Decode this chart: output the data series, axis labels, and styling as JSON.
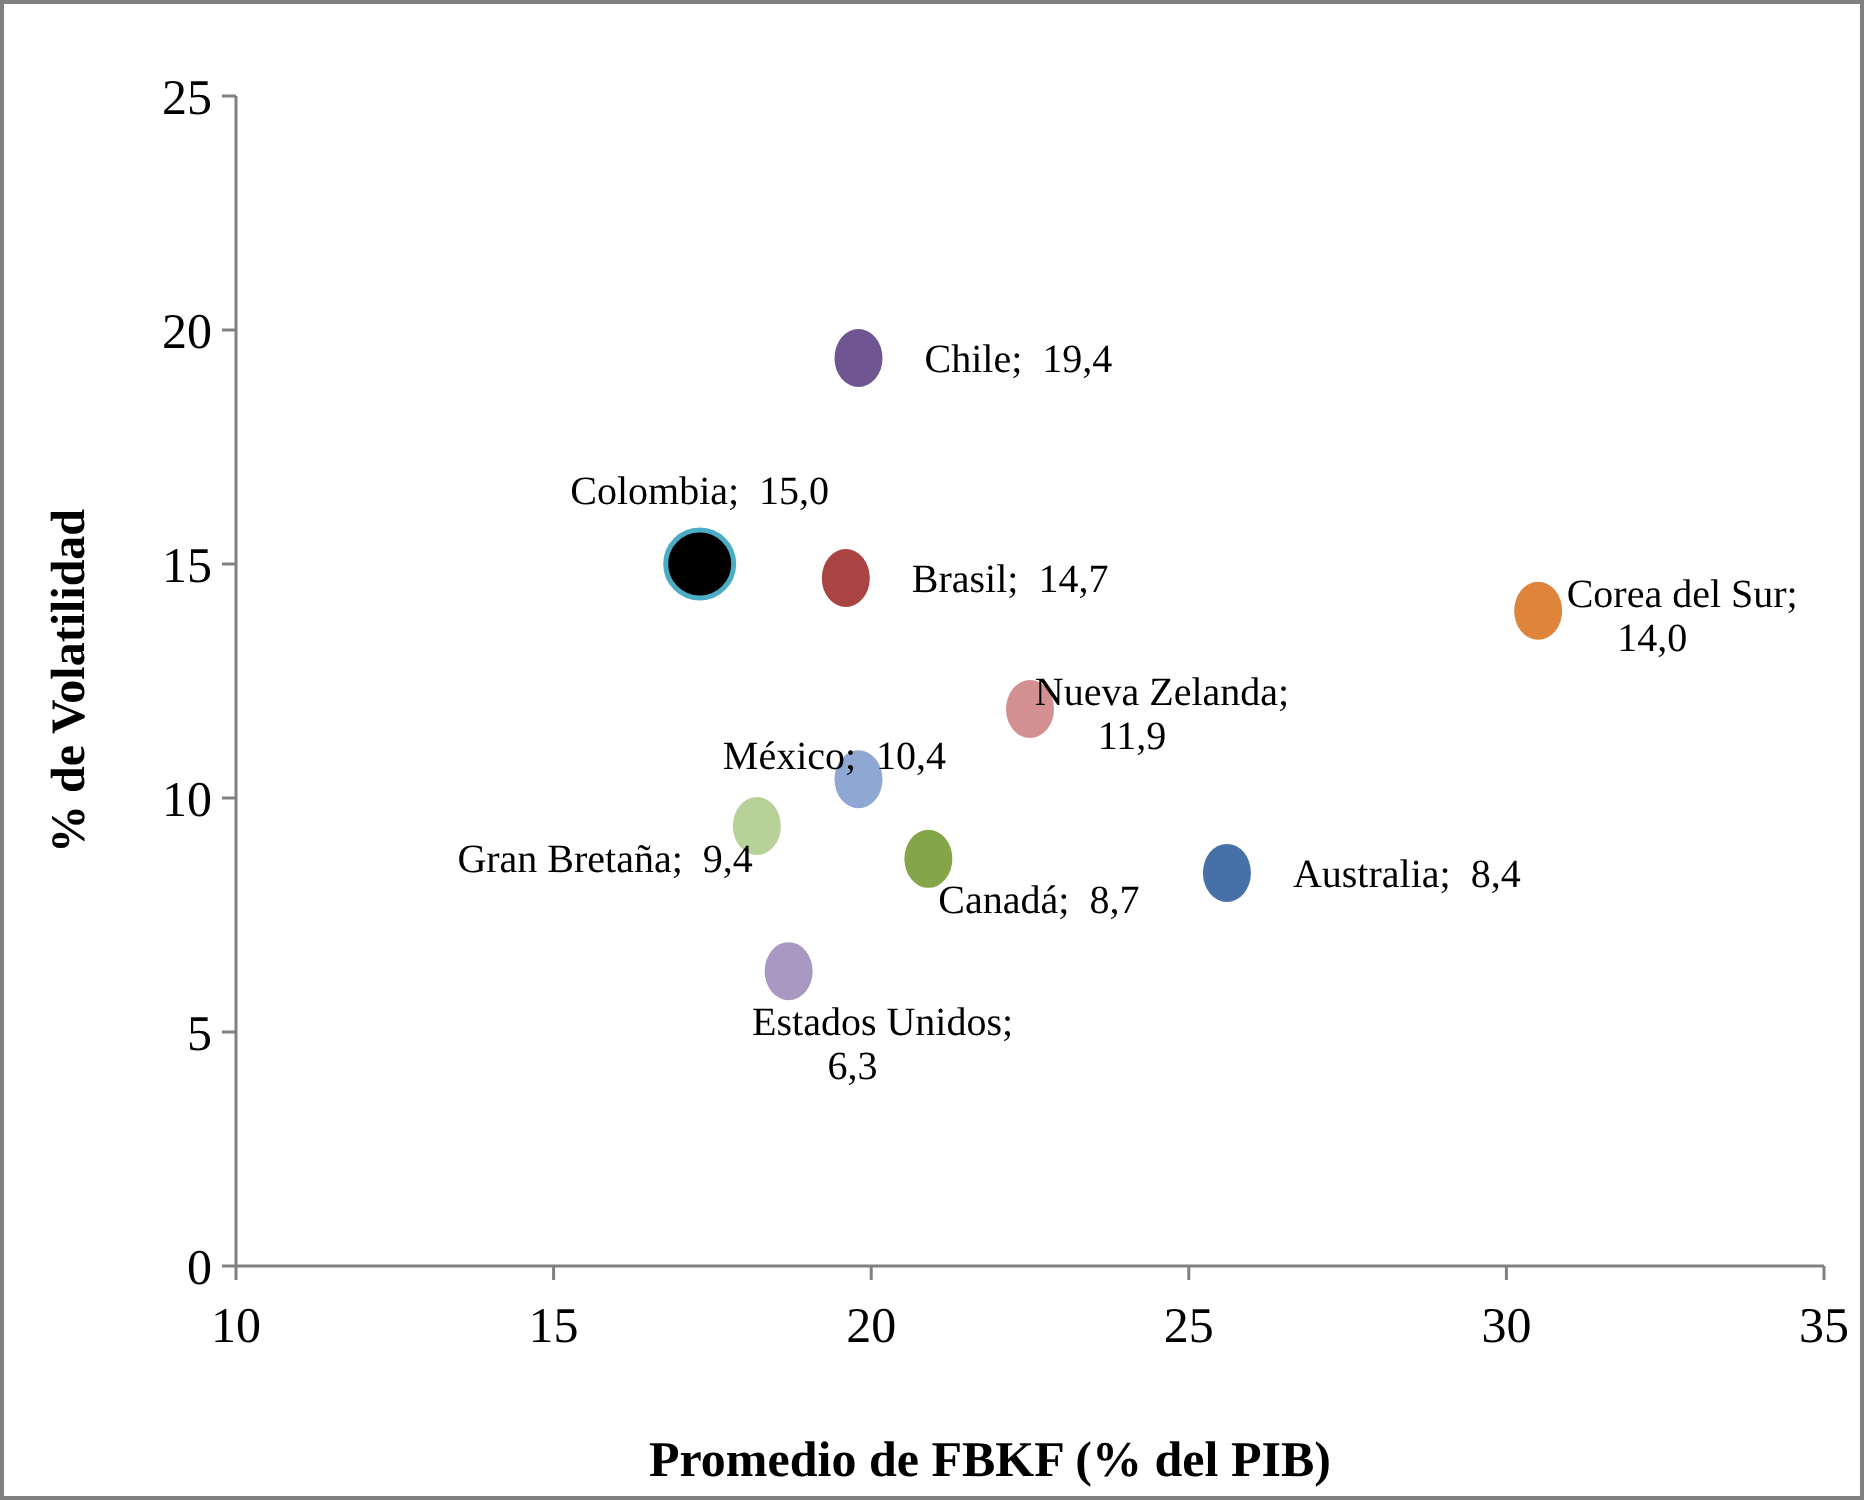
{
  "chart_data": {
    "type": "scatter",
    "xlabel": "Promedio de FBKF (% del PIB)",
    "ylabel": "% de Volatilidad",
    "xlim": [
      10,
      35
    ],
    "xticks": [
      10,
      15,
      20,
      25,
      30,
      35
    ],
    "ylim": [
      0,
      25
    ],
    "yticks": [
      0,
      5,
      10,
      15,
      20,
      25
    ],
    "grid": false,
    "legend": false,
    "marker": "circle",
    "series": [
      {
        "name": "Chile;",
        "color": "#6f5592",
        "x": [
          19.8
        ],
        "values": [
          19.4
        ],
        "value_labels": [
          "19,4"
        ]
      },
      {
        "name": "Colombia;",
        "color": "#000000",
        "x": [
          17.3
        ],
        "values": [
          15.0
        ],
        "value_labels": [
          "15,0"
        ]
      },
      {
        "name": "Brasil;",
        "color": "#a94442",
        "x": [
          19.6
        ],
        "values": [
          14.7
        ],
        "value_labels": [
          "14,7"
        ]
      },
      {
        "name": "Corea del Sur;",
        "color": "#de843b",
        "x": [
          30.5
        ],
        "values": [
          14.0
        ],
        "value_labels": [
          "14,0"
        ]
      },
      {
        "name": "Nueva Zelanda;",
        "color": "#d49090",
        "x": [
          22.5
        ],
        "values": [
          11.9
        ],
        "value_labels": [
          "11,9"
        ]
      },
      {
        "name": "México;",
        "color": "#8ea7d3",
        "x": [
          19.8
        ],
        "values": [
          10.4
        ],
        "value_labels": [
          "10,4"
        ]
      },
      {
        "name": "Gran Bretaña;",
        "color": "#b8d198",
        "x": [
          18.2
        ],
        "values": [
          9.4
        ],
        "value_labels": [
          "9,4"
        ]
      },
      {
        "name": "Canadá;",
        "color": "#84a648",
        "x": [
          20.9
        ],
        "values": [
          8.7
        ],
        "value_labels": [
          "8,7"
        ]
      },
      {
        "name": "Australia;",
        "color": "#4671a8",
        "x": [
          25.6
        ],
        "values": [
          8.4
        ],
        "value_labels": [
          "8,4"
        ]
      },
      {
        "name": "Estados Unidos;",
        "color": "#a898c2",
        "x": [
          18.7
        ],
        "values": [
          6.3
        ],
        "value_labels": [
          "6,3"
        ]
      }
    ]
  }
}
